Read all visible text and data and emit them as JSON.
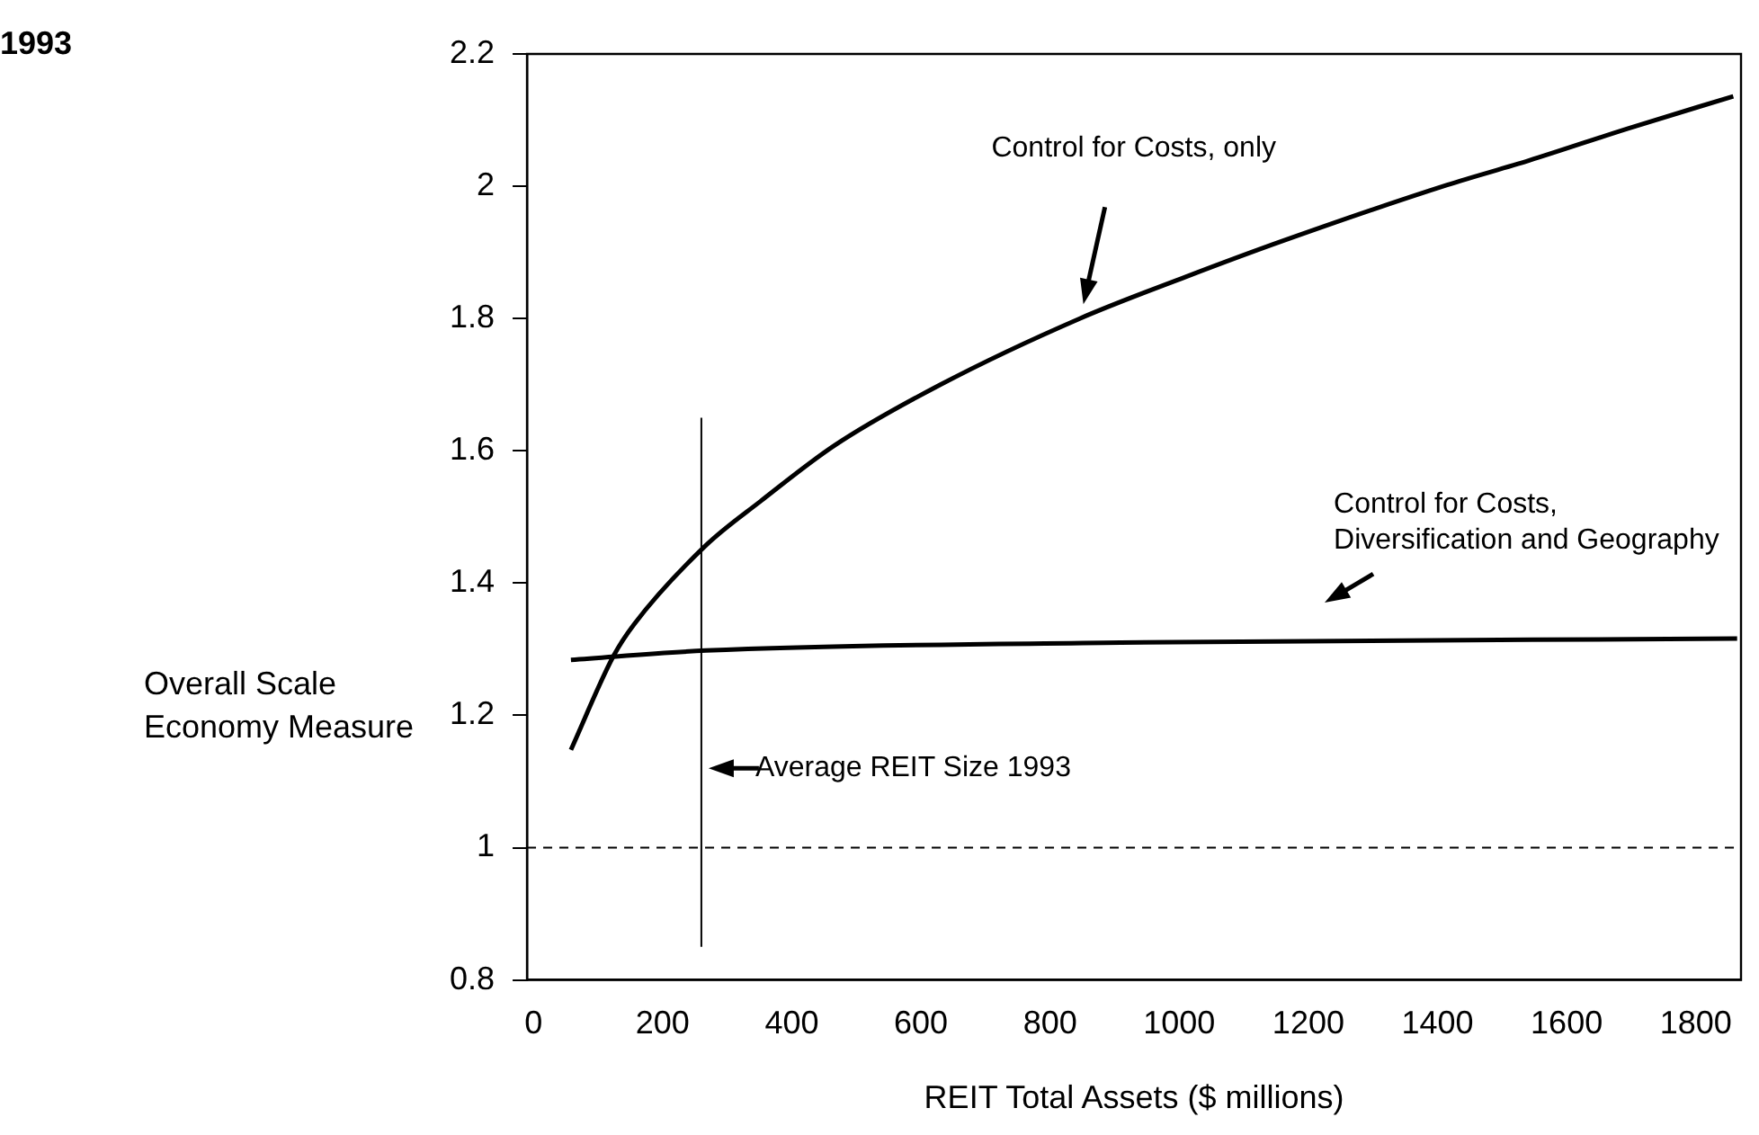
{
  "chart_data": {
    "type": "line",
    "title": "1993",
    "xlabel": "REIT Total Assets ($ millions)",
    "ylabel": "Overall Scale Economy Measure",
    "series": [
      {
        "name": "Control for Costs, only",
        "color": "#000000",
        "x": [
          58,
          124,
          156,
          267,
          352,
          466,
          630,
          846,
          1010,
          1162,
          1415,
          1542,
          1694,
          1858
        ],
        "values": [
          1.148,
          1.29,
          1.338,
          1.457,
          1.524,
          1.608,
          1.7,
          1.8,
          1.863,
          1.918,
          2.002,
          2.039,
          2.087,
          2.136
        ]
      },
      {
        "name": "Control for Costs, Diversification and Geography",
        "color": "#000000",
        "x": [
          58,
          267,
          909,
          1864
        ],
        "values": [
          1.284,
          1.298,
          1.31,
          1.316
        ]
      }
    ],
    "xlim": [
      -10,
      1870
    ],
    "xticks": [
      0,
      200,
      400,
      600,
      800,
      1000,
      1200,
      1400,
      1600,
      1800
    ],
    "ylim": [
      0.8,
      2.2
    ],
    "yticks": [
      0.8,
      1,
      1.2,
      1.4,
      1.6,
      1.8,
      2,
      2.2
    ],
    "ref_lines": [
      {
        "axis": "x",
        "value": 260,
        "label": "Average REIT Size 1993",
        "color": "#000000",
        "line_style": "solid"
      },
      {
        "axis": "y",
        "value": 1,
        "color": "#000000",
        "line_style": "dashed"
      }
    ],
    "grid": false,
    "legend": false,
    "marker": "none",
    "line_style": "solid"
  }
}
